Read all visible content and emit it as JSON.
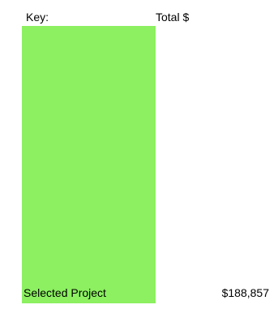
{
  "legend": {
    "key_label": "Key:",
    "total_label": "Total $",
    "swatch_color": "#8cf060"
  },
  "rows": [
    {
      "label": "Selected Project",
      "value": "$188,857"
    }
  ]
}
